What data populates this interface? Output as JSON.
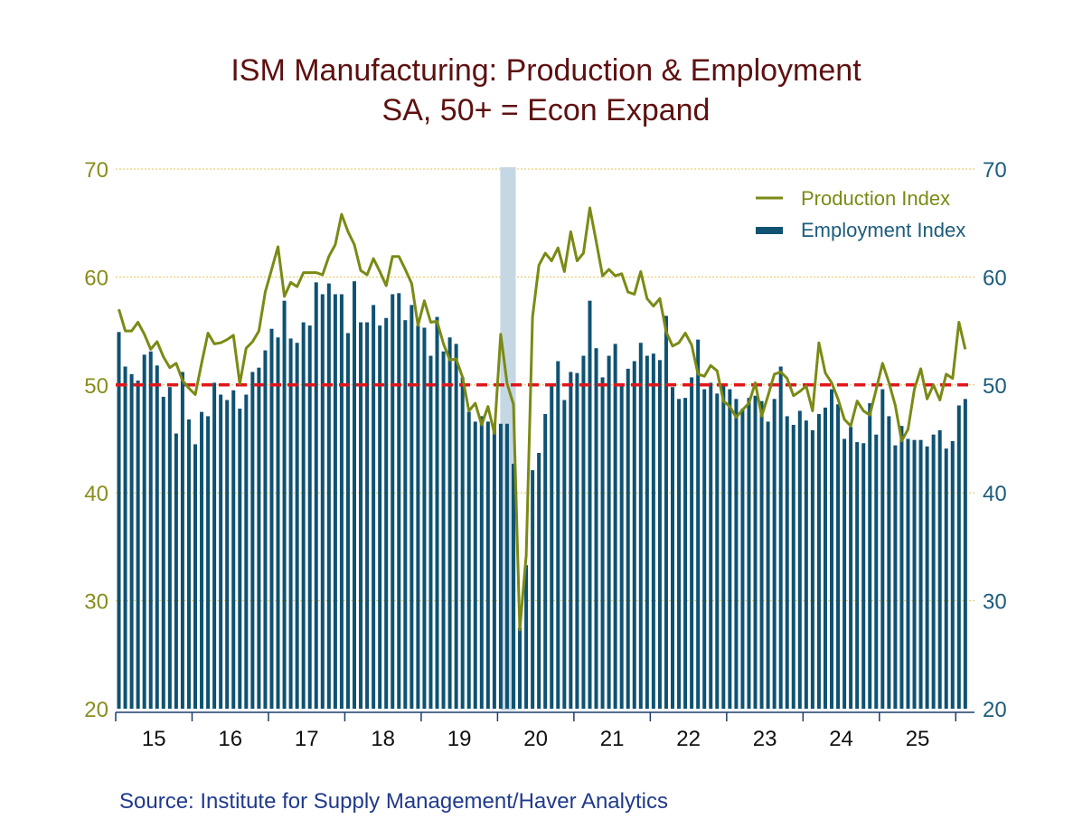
{
  "chart_data": {
    "type": "bar+line",
    "title": "ISM Manufacturing: Production & Employment",
    "subtitle": "SA, 50+ = Econ Expand",
    "source": "Source:  Institute for Supply Management/Haver Analytics",
    "x_start": "2015-01",
    "x_end": "2026-02",
    "frequency": "monthly",
    "x_tick_labels": [
      "15",
      "16",
      "17",
      "18",
      "19",
      "20",
      "21",
      "22",
      "23",
      "24",
      "25"
    ],
    "ylim": [
      20,
      70
    ],
    "y_ticks": [
      20,
      30,
      40,
      50,
      60,
      70
    ],
    "y_axis_left": true,
    "y_axis_right": true,
    "grid": "horizontal dashed",
    "reference_line": {
      "value": 50,
      "style": "dashed",
      "color": "#e0161b"
    },
    "recession_shading": [
      {
        "start": "2020-02",
        "end": "2020-04"
      }
    ],
    "legend_position": "top-right",
    "series": [
      {
        "name": "Production Index",
        "type": "line",
        "color": "#7b8a14",
        "values": [
          57.0,
          55.0,
          55.0,
          55.8,
          54.7,
          53.3,
          54.0,
          52.6,
          51.6,
          52.0,
          50.4,
          49.7,
          49.1,
          52.0,
          54.8,
          53.8,
          53.9,
          54.2,
          54.6,
          50.1,
          53.4,
          54.0,
          55.0,
          58.6,
          60.7,
          62.8,
          58.2,
          59.5,
          59.1,
          60.4,
          60.4,
          60.4,
          60.2,
          61.9,
          63.0,
          65.8,
          64.2,
          63.0,
          60.6,
          60.2,
          61.7,
          60.5,
          59.2,
          61.9,
          61.9,
          60.7,
          59.4,
          55.5,
          57.8,
          55.8,
          55.9,
          53.8,
          52.3,
          52.4,
          50.7,
          47.6,
          48.3,
          46.3,
          48.0,
          45.5,
          54.7,
          50.1,
          48.2,
          27.3,
          34.2,
          56.3,
          61.1,
          62.2,
          61.5,
          62.7,
          60.5,
          64.2,
          61.5,
          62.2,
          66.4,
          63.3,
          60.1,
          60.7,
          60.1,
          60.3,
          58.6,
          58.4,
          60.5,
          58.0,
          57.3,
          58.0,
          54.9,
          53.6,
          53.9,
          54.8,
          53.7,
          51.0,
          50.8,
          51.8,
          51.3,
          48.5,
          48.0,
          47.0,
          47.7,
          48.3,
          50.2,
          47.1,
          49.0,
          51.0,
          51.2,
          50.6,
          49.0,
          49.4,
          49.9,
          47.6,
          53.9,
          51.1,
          50.2,
          48.7,
          46.8,
          46.2,
          48.5,
          47.6,
          47.2,
          49.6,
          52.0,
          50.2,
          48.1,
          44.8,
          45.9,
          49.6,
          51.5,
          48.7,
          50.0,
          48.6,
          51.0,
          50.6,
          55.8,
          53.3
        ]
      },
      {
        "name": "Employment Index",
        "type": "bar",
        "color": "#0f5272",
        "values": [
          54.9,
          51.7,
          51.0,
          50.4,
          52.8,
          53.1,
          51.8,
          48.9,
          49.8,
          45.5,
          51.2,
          46.8,
          44.5,
          47.5,
          47.1,
          50.2,
          49.1,
          48.6,
          49.5,
          47.8,
          49.1,
          51.2,
          51.6,
          53.2,
          55.2,
          54.4,
          57.8,
          54.3,
          53.9,
          55.8,
          55.5,
          59.5,
          58.4,
          59.4,
          58.4,
          58.4,
          54.8,
          59.6,
          55.8,
          55.8,
          57.4,
          55.5,
          56.2,
          58.4,
          58.5,
          56.0,
          57.4,
          55.5,
          55.3,
          52.7,
          56.3,
          53.1,
          54.4,
          53.8,
          50.7,
          47.5,
          46.6,
          47.1,
          46.6,
          46.2,
          46.4,
          46.4,
          42.7,
          27.5,
          33.3,
          42.1,
          43.7,
          47.3,
          50.1,
          52.2,
          48.6,
          51.2,
          51.1,
          52.7,
          57.8,
          53.4,
          50.7,
          52.7,
          53.8,
          49.9,
          51.5,
          52.2,
          53.9,
          52.7,
          52.9,
          52.3,
          56.4,
          49.8,
          48.7,
          48.8,
          50.7,
          54.2,
          49.6,
          50.2,
          49.2,
          50.1,
          49.6,
          48.7,
          47.8,
          48.8,
          49.0,
          48.5,
          46.6,
          48.7,
          51.7,
          47.1,
          46.3,
          47.6,
          46.7,
          45.8,
          47.3,
          47.9,
          49.6,
          48.2,
          45.0,
          46.1,
          44.7,
          44.6,
          48.3,
          45.4,
          49.6,
          47.1,
          44.4,
          46.2,
          45.0,
          44.9,
          44.9,
          44.3,
          45.4,
          45.8,
          44.1,
          44.8,
          48.1,
          48.7
        ]
      }
    ]
  },
  "colors": {
    "title": "#5e1010",
    "left_axis": "#8a8d1c",
    "right_axis": "#1d5c7c",
    "grid": "#e6c650",
    "recession": "#c5d7e3",
    "source": "#1f3a8c"
  }
}
